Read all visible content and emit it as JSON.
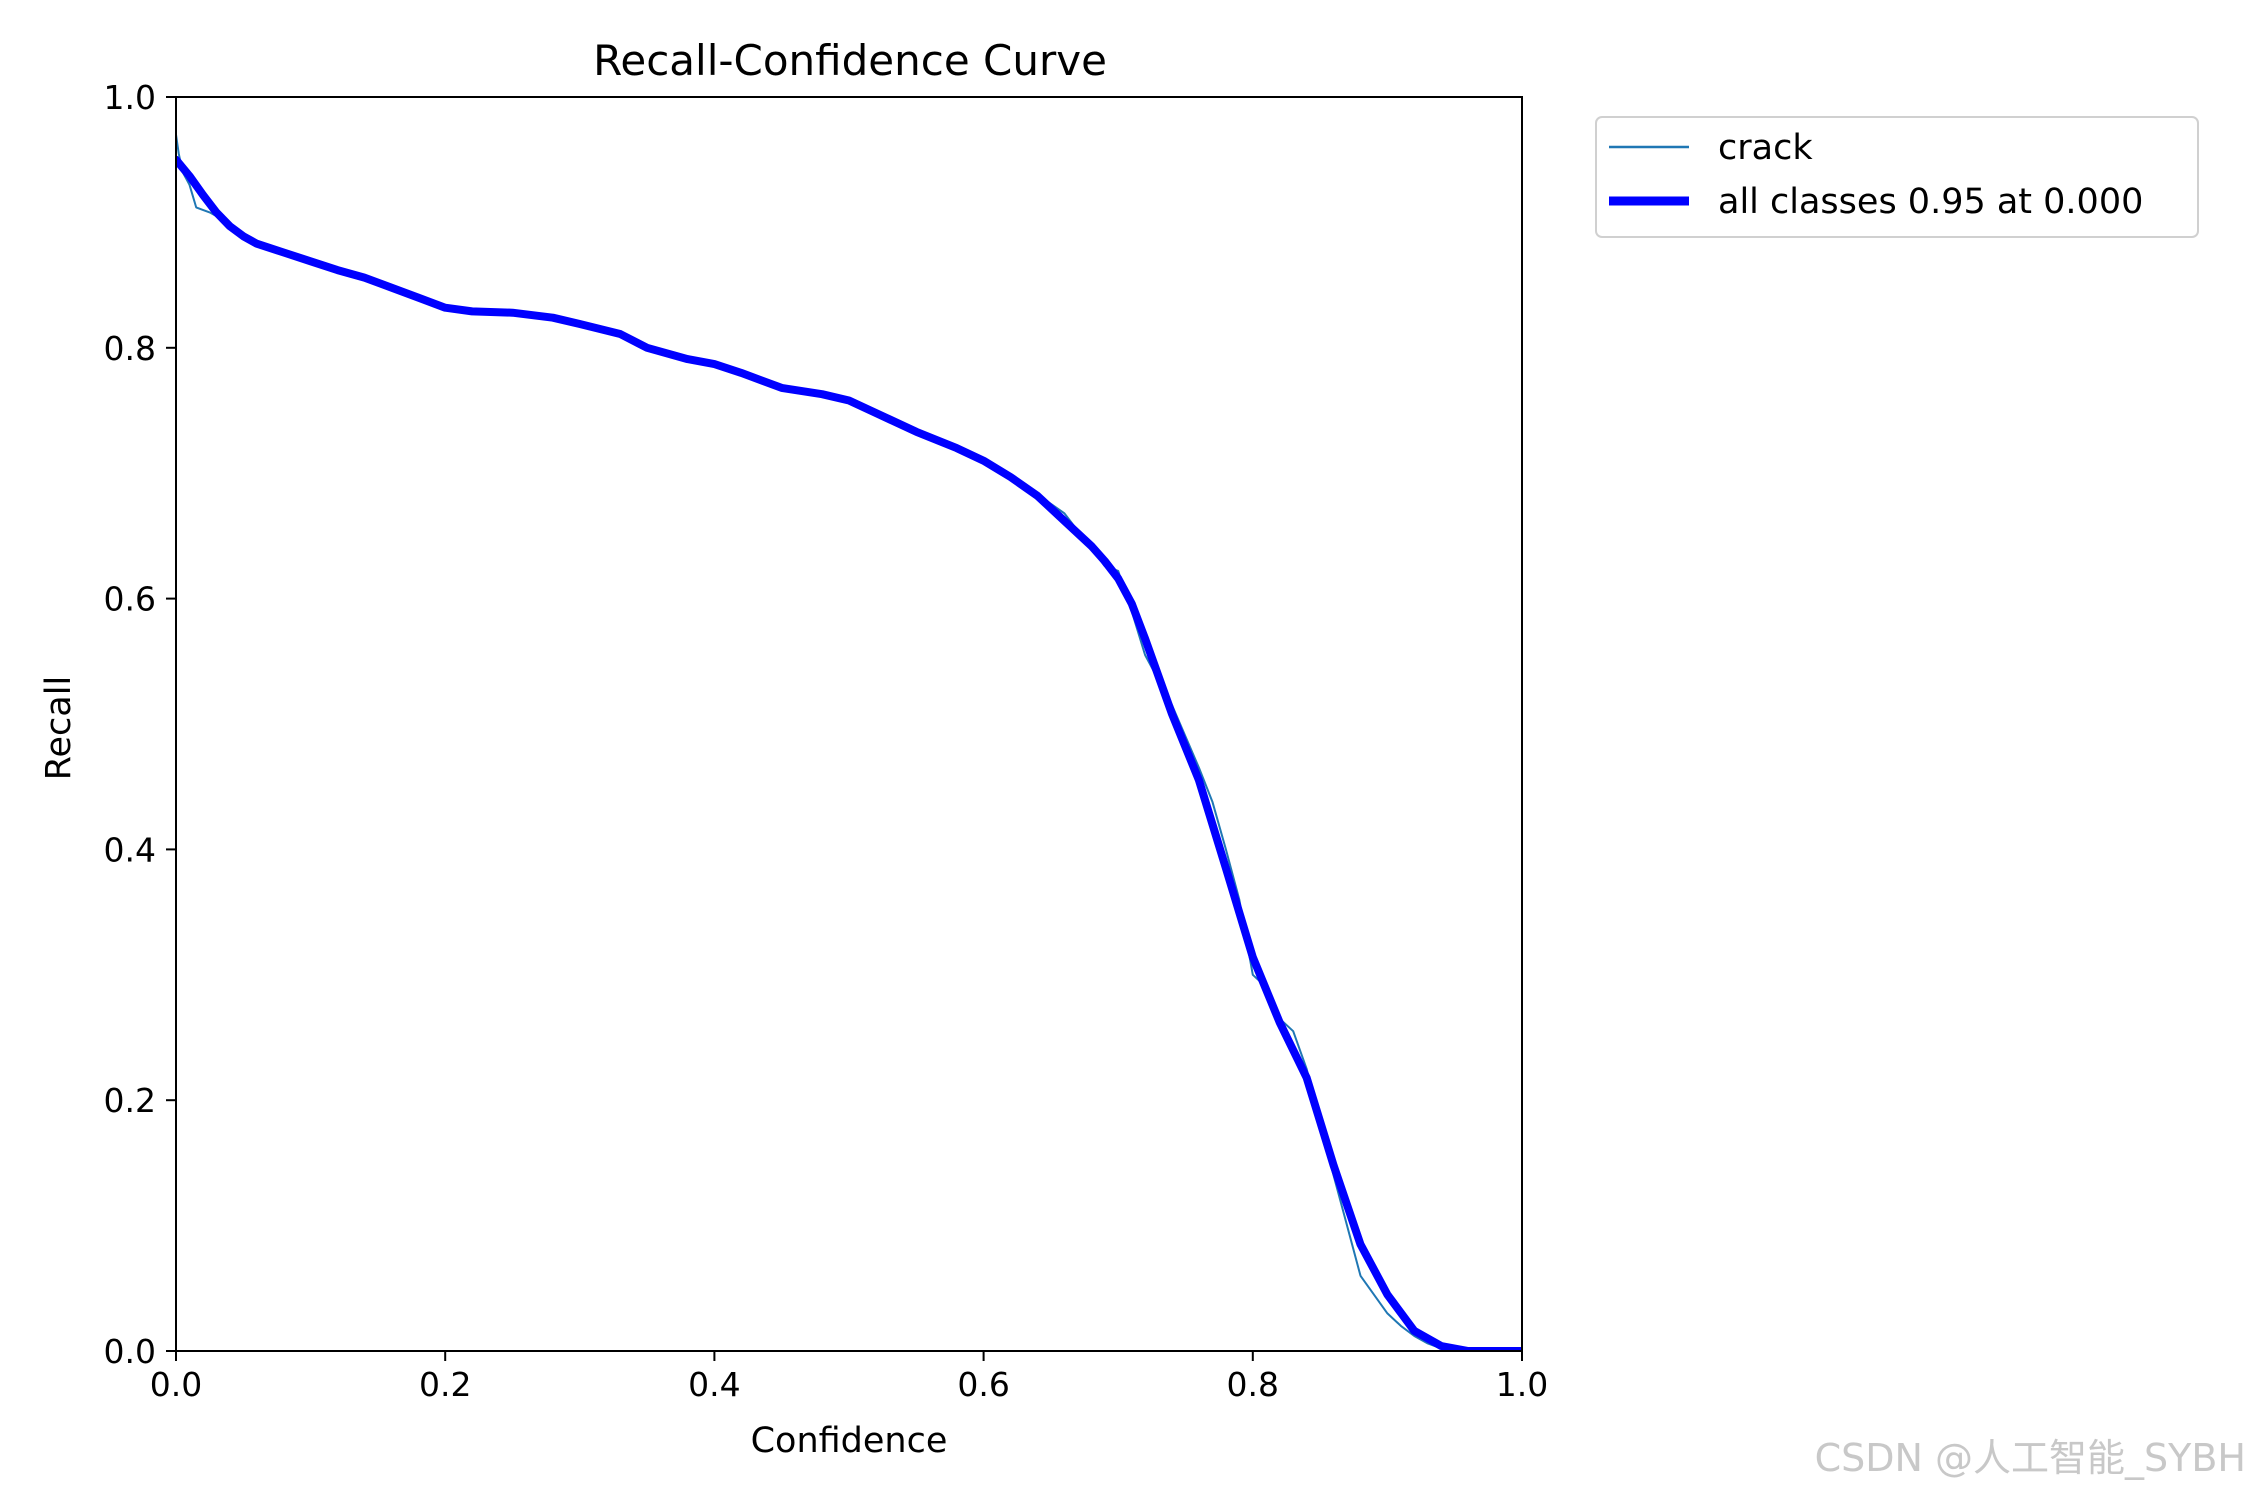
{
  "chart_data": {
    "type": "line",
    "title": "Recall-Confidence Curve",
    "xlabel": "Confidence",
    "ylabel": "Recall",
    "xlim": [
      0,
      1
    ],
    "ylim": [
      0,
      1
    ],
    "xticks": [
      "0.0",
      "0.2",
      "0.4",
      "0.6",
      "0.8",
      "1.0"
    ],
    "yticks": [
      "0.0",
      "0.2",
      "0.4",
      "0.6",
      "0.8",
      "1.0"
    ],
    "grid": false,
    "legend_position": "outside-top-right",
    "series": [
      {
        "name": "crack",
        "color": "#1f77b4",
        "style": "thin",
        "x": [
          0.0,
          0.002,
          0.005,
          0.01,
          0.015,
          0.02,
          0.025,
          0.03,
          0.04,
          0.05,
          0.06,
          0.07,
          0.08,
          0.1,
          0.12,
          0.14,
          0.16,
          0.18,
          0.2,
          0.22,
          0.25,
          0.28,
          0.3,
          0.33,
          0.35,
          0.38,
          0.4,
          0.42,
          0.45,
          0.48,
          0.5,
          0.52,
          0.55,
          0.58,
          0.6,
          0.62,
          0.64,
          0.66,
          0.68,
          0.69,
          0.7,
          0.71,
          0.72,
          0.74,
          0.76,
          0.77,
          0.78,
          0.79,
          0.8,
          0.81,
          0.82,
          0.83,
          0.84,
          0.86,
          0.88,
          0.9,
          0.91,
          0.92,
          0.93,
          0.94,
          0.95,
          0.96,
          0.98,
          1.0
        ],
        "y": [
          0.97,
          0.955,
          0.94,
          0.93,
          0.912,
          0.91,
          0.908,
          0.905,
          0.897,
          0.89,
          0.885,
          0.88,
          0.876,
          0.87,
          0.863,
          0.857,
          0.85,
          0.841,
          0.833,
          0.829,
          0.828,
          0.824,
          0.819,
          0.812,
          0.8,
          0.79,
          0.787,
          0.779,
          0.766,
          0.762,
          0.758,
          0.748,
          0.733,
          0.72,
          0.71,
          0.697,
          0.683,
          0.668,
          0.64,
          0.626,
          0.622,
          0.59,
          0.555,
          0.515,
          0.465,
          0.438,
          0.4,
          0.36,
          0.3,
          0.29,
          0.265,
          0.255,
          0.225,
          0.14,
          0.06,
          0.03,
          0.02,
          0.012,
          0.006,
          0.002,
          0.0,
          0.0,
          0.0,
          0.0
        ]
      },
      {
        "name": "all classes 0.95 at 0.000",
        "color": "#0000ff",
        "style": "thick",
        "x": [
          0.0,
          0.01,
          0.02,
          0.03,
          0.04,
          0.05,
          0.06,
          0.08,
          0.1,
          0.12,
          0.14,
          0.16,
          0.18,
          0.2,
          0.22,
          0.25,
          0.28,
          0.3,
          0.33,
          0.35,
          0.38,
          0.4,
          0.42,
          0.45,
          0.48,
          0.5,
          0.52,
          0.55,
          0.58,
          0.6,
          0.62,
          0.64,
          0.66,
          0.68,
          0.69,
          0.7,
          0.71,
          0.72,
          0.74,
          0.76,
          0.78,
          0.8,
          0.82,
          0.84,
          0.86,
          0.88,
          0.9,
          0.92,
          0.94,
          0.96,
          0.98,
          1.0
        ],
        "y": [
          0.95,
          0.937,
          0.922,
          0.908,
          0.897,
          0.889,
          0.883,
          0.876,
          0.869,
          0.862,
          0.856,
          0.848,
          0.84,
          0.832,
          0.829,
          0.828,
          0.824,
          0.819,
          0.811,
          0.8,
          0.791,
          0.787,
          0.78,
          0.768,
          0.763,
          0.758,
          0.748,
          0.733,
          0.72,
          0.71,
          0.697,
          0.682,
          0.662,
          0.642,
          0.63,
          0.616,
          0.596,
          0.568,
          0.508,
          0.455,
          0.385,
          0.314,
          0.262,
          0.218,
          0.148,
          0.085,
          0.045,
          0.016,
          0.004,
          0.0,
          0.0,
          0.0
        ]
      }
    ]
  },
  "watermark": "CSDN @人工智能_SYBH"
}
